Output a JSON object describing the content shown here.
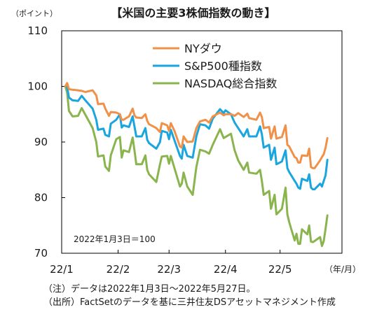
{
  "chart_data": {
    "type": "line",
    "title": "【米国の主要3株価指数の動き】",
    "ylabel": "（ポイント）",
    "xunit": "（年/月）",
    "ylim": [
      70,
      110
    ],
    "yticks": [
      70,
      80,
      90,
      100,
      110
    ],
    "xticks": [
      {
        "date": "2022-01-01",
        "label": "22/1"
      },
      {
        "date": "2022-02-01",
        "label": "22/2"
      },
      {
        "date": "2022-03-01",
        "label": "22/3"
      },
      {
        "date": "2022-04-01",
        "label": "22/4"
      },
      {
        "date": "2022-05-01",
        "label": "22/5"
      }
    ],
    "xrange": [
      "2022-01-01",
      "2022-06-04"
    ],
    "baseline_note": "2022年1月3日＝100",
    "grid": false,
    "legend_position": "top-center",
    "series": [
      {
        "name": "NYダウ",
        "color": "#f0914a",
        "points": [
          [
            "2022-01-03",
            100.0
          ],
          [
            "2022-01-04",
            100.6
          ],
          [
            "2022-01-05",
            99.5
          ],
          [
            "2022-01-07",
            99.4
          ],
          [
            "2022-01-10",
            99.3
          ],
          [
            "2022-01-12",
            99.2
          ],
          [
            "2022-01-14",
            99.0
          ],
          [
            "2022-01-18",
            99.3
          ],
          [
            "2022-01-20",
            98.4
          ],
          [
            "2022-01-21",
            96.8
          ],
          [
            "2022-01-24",
            96.9
          ],
          [
            "2022-01-25",
            96.0
          ],
          [
            "2022-01-27",
            94.7
          ],
          [
            "2022-01-28",
            95.4
          ],
          [
            "2022-01-31",
            95.3
          ],
          [
            "2022-02-02",
            95.0
          ],
          [
            "2022-02-03",
            94.0
          ],
          [
            "2022-02-04",
            94.0
          ],
          [
            "2022-02-07",
            94.6
          ],
          [
            "2022-02-09",
            96.0
          ],
          [
            "2022-02-10",
            94.8
          ],
          [
            "2022-02-11",
            94.4
          ],
          [
            "2022-02-14",
            94.3
          ],
          [
            "2022-02-16",
            95.0
          ],
          [
            "2022-02-17",
            93.8
          ],
          [
            "2022-02-18",
            93.2
          ],
          [
            "2022-02-22",
            92.5
          ],
          [
            "2022-02-24",
            91.8
          ],
          [
            "2022-02-25",
            93.4
          ],
          [
            "2022-02-28",
            93.0
          ],
          [
            "2022-03-01",
            92.0
          ],
          [
            "2022-03-02",
            93.4
          ],
          [
            "2022-03-04",
            92.0
          ],
          [
            "2022-03-07",
            89.2
          ],
          [
            "2022-03-08",
            89.0
          ],
          [
            "2022-03-09",
            91.0
          ],
          [
            "2022-03-11",
            90.0
          ],
          [
            "2022-03-14",
            90.1
          ],
          [
            "2022-03-16",
            92.5
          ],
          [
            "2022-03-18",
            93.7
          ],
          [
            "2022-03-21",
            94.0
          ],
          [
            "2022-03-23",
            93.5
          ],
          [
            "2022-03-25",
            94.6
          ],
          [
            "2022-03-29",
            95.3
          ],
          [
            "2022-03-31",
            94.8
          ],
          [
            "2022-04-01",
            95.0
          ],
          [
            "2022-04-04",
            95.0
          ],
          [
            "2022-04-06",
            94.7
          ],
          [
            "2022-04-08",
            95.2
          ],
          [
            "2022-04-11",
            94.5
          ],
          [
            "2022-04-13",
            95.1
          ],
          [
            "2022-04-14",
            94.3
          ],
          [
            "2022-04-18",
            94.0
          ],
          [
            "2022-04-20",
            95.3
          ],
          [
            "2022-04-21",
            94.5
          ],
          [
            "2022-04-22",
            92.5
          ],
          [
            "2022-04-25",
            92.7
          ],
          [
            "2022-04-26",
            90.6
          ],
          [
            "2022-04-28",
            92.8
          ],
          [
            "2022-04-29",
            90.6
          ],
          [
            "2022-05-02",
            90.9
          ],
          [
            "2022-05-04",
            93.0
          ],
          [
            "2022-05-05",
            89.5
          ],
          [
            "2022-05-06",
            89.2
          ],
          [
            "2022-05-09",
            87.3
          ],
          [
            "2022-05-10",
            87.1
          ],
          [
            "2022-05-11",
            86.3
          ],
          [
            "2022-05-12",
            86.3
          ],
          [
            "2022-05-13",
            87.6
          ],
          [
            "2022-05-16",
            87.5
          ],
          [
            "2022-05-17",
            88.8
          ],
          [
            "2022-05-18",
            85.5
          ],
          [
            "2022-05-19",
            85.3
          ],
          [
            "2022-05-20",
            85.3
          ],
          [
            "2022-05-23",
            86.7
          ],
          [
            "2022-05-24",
            87.3
          ],
          [
            "2022-05-25",
            87.8
          ],
          [
            "2022-05-26",
            89.0
          ],
          [
            "2022-05-27",
            90.7
          ]
        ]
      },
      {
        "name": "S&P500種指数",
        "color": "#1aa5de",
        "points": [
          [
            "2022-01-03",
            100.0
          ],
          [
            "2022-01-04",
            99.9
          ],
          [
            "2022-01-05",
            98.0
          ],
          [
            "2022-01-07",
            97.5
          ],
          [
            "2022-01-10",
            97.4
          ],
          [
            "2022-01-12",
            98.3
          ],
          [
            "2022-01-14",
            97.5
          ],
          [
            "2022-01-18",
            96.0
          ],
          [
            "2022-01-20",
            94.0
          ],
          [
            "2022-01-21",
            92.2
          ],
          [
            "2022-01-24",
            92.4
          ],
          [
            "2022-01-25",
            91.3
          ],
          [
            "2022-01-27",
            91.0
          ],
          [
            "2022-01-28",
            93.3
          ],
          [
            "2022-01-31",
            94.0
          ],
          [
            "2022-02-02",
            95.0
          ],
          [
            "2022-02-03",
            92.6
          ],
          [
            "2022-02-04",
            93.0
          ],
          [
            "2022-02-07",
            92.7
          ],
          [
            "2022-02-09",
            94.6
          ],
          [
            "2022-02-10",
            92.8
          ],
          [
            "2022-02-11",
            91.0
          ],
          [
            "2022-02-14",
            91.0
          ],
          [
            "2022-02-16",
            92.5
          ],
          [
            "2022-02-17",
            90.4
          ],
          [
            "2022-02-18",
            89.8
          ],
          [
            "2022-02-22",
            88.8
          ],
          [
            "2022-02-24",
            90.0
          ],
          [
            "2022-02-25",
            92.0
          ],
          [
            "2022-02-28",
            91.7
          ],
          [
            "2022-03-01",
            90.5
          ],
          [
            "2022-03-02",
            92.2
          ],
          [
            "2022-03-04",
            90.3
          ],
          [
            "2022-03-07",
            87.5
          ],
          [
            "2022-03-08",
            87.0
          ],
          [
            "2022-03-09",
            89.5
          ],
          [
            "2022-03-11",
            87.5
          ],
          [
            "2022-03-14",
            87.2
          ],
          [
            "2022-03-16",
            91.0
          ],
          [
            "2022-03-18",
            93.2
          ],
          [
            "2022-03-21",
            93.0
          ],
          [
            "2022-03-23",
            92.4
          ],
          [
            "2022-03-25",
            94.2
          ],
          [
            "2022-03-29",
            95.9
          ],
          [
            "2022-03-31",
            95.2
          ],
          [
            "2022-04-01",
            95.7
          ],
          [
            "2022-04-04",
            95.0
          ],
          [
            "2022-04-06",
            93.5
          ],
          [
            "2022-04-08",
            92.5
          ],
          [
            "2022-04-11",
            91.0
          ],
          [
            "2022-04-13",
            92.3
          ],
          [
            "2022-04-14",
            91.0
          ],
          [
            "2022-04-18",
            91.0
          ],
          [
            "2022-04-20",
            92.8
          ],
          [
            "2022-04-21",
            91.4
          ],
          [
            "2022-04-22",
            89.0
          ],
          [
            "2022-04-25",
            89.5
          ],
          [
            "2022-04-26",
            86.8
          ],
          [
            "2022-04-28",
            89.0
          ],
          [
            "2022-04-29",
            86.0
          ],
          [
            "2022-05-02",
            86.5
          ],
          [
            "2022-05-04",
            88.5
          ],
          [
            "2022-05-05",
            85.3
          ],
          [
            "2022-05-06",
            84.6
          ],
          [
            "2022-05-09",
            83.0
          ],
          [
            "2022-05-10",
            82.5
          ],
          [
            "2022-05-11",
            81.8
          ],
          [
            "2022-05-12",
            81.6
          ],
          [
            "2022-05-13",
            83.4
          ],
          [
            "2022-05-16",
            83.0
          ],
          [
            "2022-05-17",
            84.2
          ],
          [
            "2022-05-18",
            81.8
          ],
          [
            "2022-05-19",
            81.5
          ],
          [
            "2022-05-20",
            81.5
          ],
          [
            "2022-05-23",
            82.5
          ],
          [
            "2022-05-24",
            82.0
          ],
          [
            "2022-05-25",
            83.0
          ],
          [
            "2022-05-26",
            84.0
          ],
          [
            "2022-05-27",
            86.8
          ]
        ]
      },
      {
        "name": "NASDAQ総合指数",
        "color": "#8ab44d",
        "points": [
          [
            "2022-01-03",
            100.0
          ],
          [
            "2022-01-04",
            98.9
          ],
          [
            "2022-01-05",
            95.6
          ],
          [
            "2022-01-07",
            94.6
          ],
          [
            "2022-01-10",
            94.7
          ],
          [
            "2022-01-12",
            96.1
          ],
          [
            "2022-01-14",
            94.9
          ],
          [
            "2022-01-18",
            92.5
          ],
          [
            "2022-01-20",
            90.0
          ],
          [
            "2022-01-21",
            87.4
          ],
          [
            "2022-01-24",
            87.6
          ],
          [
            "2022-01-25",
            85.6
          ],
          [
            "2022-01-27",
            84.8
          ],
          [
            "2022-01-28",
            87.6
          ],
          [
            "2022-01-31",
            90.5
          ],
          [
            "2022-02-02",
            90.9
          ],
          [
            "2022-02-03",
            87.2
          ],
          [
            "2022-02-04",
            88.5
          ],
          [
            "2022-02-07",
            88.2
          ],
          [
            "2022-02-09",
            90.8
          ],
          [
            "2022-02-10",
            88.5
          ],
          [
            "2022-02-11",
            86.0
          ],
          [
            "2022-02-14",
            86.0
          ],
          [
            "2022-02-16",
            87.6
          ],
          [
            "2022-02-17",
            85.0
          ],
          [
            "2022-02-18",
            84.2
          ],
          [
            "2022-02-22",
            82.8
          ],
          [
            "2022-02-24",
            86.0
          ],
          [
            "2022-02-25",
            87.4
          ],
          [
            "2022-02-28",
            87.5
          ],
          [
            "2022-03-01",
            86.1
          ],
          [
            "2022-03-02",
            87.5
          ],
          [
            "2022-03-04",
            85.3
          ],
          [
            "2022-03-07",
            82.0
          ],
          [
            "2022-03-08",
            82.5
          ],
          [
            "2022-03-09",
            84.5
          ],
          [
            "2022-03-11",
            82.0
          ],
          [
            "2022-03-14",
            80.5
          ],
          [
            "2022-03-16",
            85.5
          ],
          [
            "2022-03-18",
            88.6
          ],
          [
            "2022-03-21",
            88.3
          ],
          [
            "2022-03-23",
            87.9
          ],
          [
            "2022-03-25",
            89.5
          ],
          [
            "2022-03-29",
            92.3
          ],
          [
            "2022-03-31",
            90.7
          ],
          [
            "2022-04-01",
            90.9
          ],
          [
            "2022-04-04",
            91.5
          ],
          [
            "2022-04-06",
            88.5
          ],
          [
            "2022-04-08",
            86.7
          ],
          [
            "2022-04-11",
            85.0
          ],
          [
            "2022-04-13",
            86.3
          ],
          [
            "2022-04-14",
            84.5
          ],
          [
            "2022-04-18",
            84.3
          ],
          [
            "2022-04-20",
            85.0
          ],
          [
            "2022-04-21",
            83.0
          ],
          [
            "2022-04-22",
            80.5
          ],
          [
            "2022-04-25",
            81.2
          ],
          [
            "2022-04-26",
            78.0
          ],
          [
            "2022-04-28",
            80.5
          ],
          [
            "2022-04-29",
            77.0
          ],
          [
            "2022-05-02",
            78.0
          ],
          [
            "2022-05-04",
            81.8
          ],
          [
            "2022-05-05",
            77.0
          ],
          [
            "2022-05-06",
            75.6
          ],
          [
            "2022-05-09",
            72.3
          ],
          [
            "2022-05-10",
            73.5
          ],
          [
            "2022-05-11",
            71.7
          ],
          [
            "2022-05-12",
            71.7
          ],
          [
            "2022-05-13",
            74.3
          ],
          [
            "2022-05-16",
            73.4
          ],
          [
            "2022-05-17",
            75.0
          ],
          [
            "2022-05-18",
            72.1
          ],
          [
            "2022-05-19",
            72.0
          ],
          [
            "2022-05-20",
            72.2
          ],
          [
            "2022-05-23",
            72.9
          ],
          [
            "2022-05-24",
            71.3
          ],
          [
            "2022-05-25",
            72.2
          ],
          [
            "2022-05-26",
            74.4
          ],
          [
            "2022-05-27",
            76.8
          ]
        ]
      }
    ]
  },
  "notes": [
    "（注）データは2022年1月3日～2022年5月27日。",
    "（出所）FactSetのデータを基に三井住友DSアセットマネジメント作成"
  ]
}
